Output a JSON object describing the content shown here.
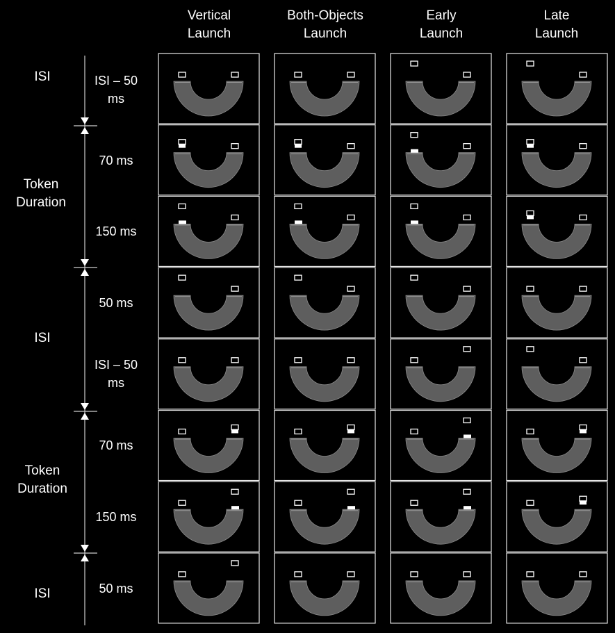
{
  "columns": [
    {
      "line1": "Vertical",
      "line2": "Launch"
    },
    {
      "line1": "Both-Objects",
      "line2": "Launch"
    },
    {
      "line1": "Early",
      "line2": "Launch"
    },
    {
      "line1": "Late",
      "line2": "Launch"
    }
  ],
  "phases": [
    "ISI",
    "Token\nDuration",
    "ISI",
    "Token\nDuration",
    "ISI"
  ],
  "durations": [
    "ISI – 50\nms",
    "70 ms",
    "150 ms",
    "50 ms",
    "ISI – 50\nms",
    "70 ms",
    "150 ms",
    "50 ms"
  ],
  "frames": [
    [
      {
        "left": "low",
        "right": "low"
      },
      {
        "left": "low",
        "right": "low"
      },
      {
        "left": "high",
        "right": "low"
      },
      {
        "left": "high",
        "right": "low"
      }
    ],
    [
      {
        "left": "low-white",
        "right": "low"
      },
      {
        "left": "low-white",
        "right": "low"
      },
      {
        "left": "high",
        "right": "low",
        "leftbar": true
      },
      {
        "left": "low-white",
        "right": "low"
      }
    ],
    [
      {
        "left": "high",
        "right": "low",
        "leftbar": true
      },
      {
        "left": "high",
        "right": "low",
        "leftbar": true
      },
      {
        "left": "high",
        "right": "low",
        "leftbar": true
      },
      {
        "left": "low-white",
        "right": "low"
      }
    ],
    [
      {
        "left": "high",
        "right": "low"
      },
      {
        "left": "high",
        "right": "low"
      },
      {
        "left": "high",
        "right": "low"
      },
      {
        "left": "low",
        "right": "low"
      }
    ],
    [
      {
        "left": "low",
        "right": "low"
      },
      {
        "left": "low",
        "right": "low"
      },
      {
        "left": "low",
        "right": "high"
      },
      {
        "left": "high",
        "right": "low"
      }
    ],
    [
      {
        "left": "low",
        "right": "low-white"
      },
      {
        "left": "low",
        "right": "low-white"
      },
      {
        "left": "low",
        "right": "high",
        "rightbar": true
      },
      {
        "left": "low",
        "right": "low-white"
      }
    ],
    [
      {
        "left": "low",
        "right": "high",
        "rightbar": true
      },
      {
        "left": "low",
        "right": "high",
        "rightbar": true
      },
      {
        "left": "low",
        "right": "high",
        "rightbar": true
      },
      {
        "left": "low",
        "right": "low-white"
      }
    ],
    [
      {
        "left": "low",
        "right": "high"
      },
      {
        "left": "low",
        "right": "low"
      },
      {
        "left": "low",
        "right": "low"
      },
      {
        "left": "low",
        "right": "low"
      }
    ]
  ],
  "colors": {
    "background": "#000000",
    "track": "#5e5e5e",
    "frame": "#e8e8e8",
    "object": "#ffffff"
  }
}
